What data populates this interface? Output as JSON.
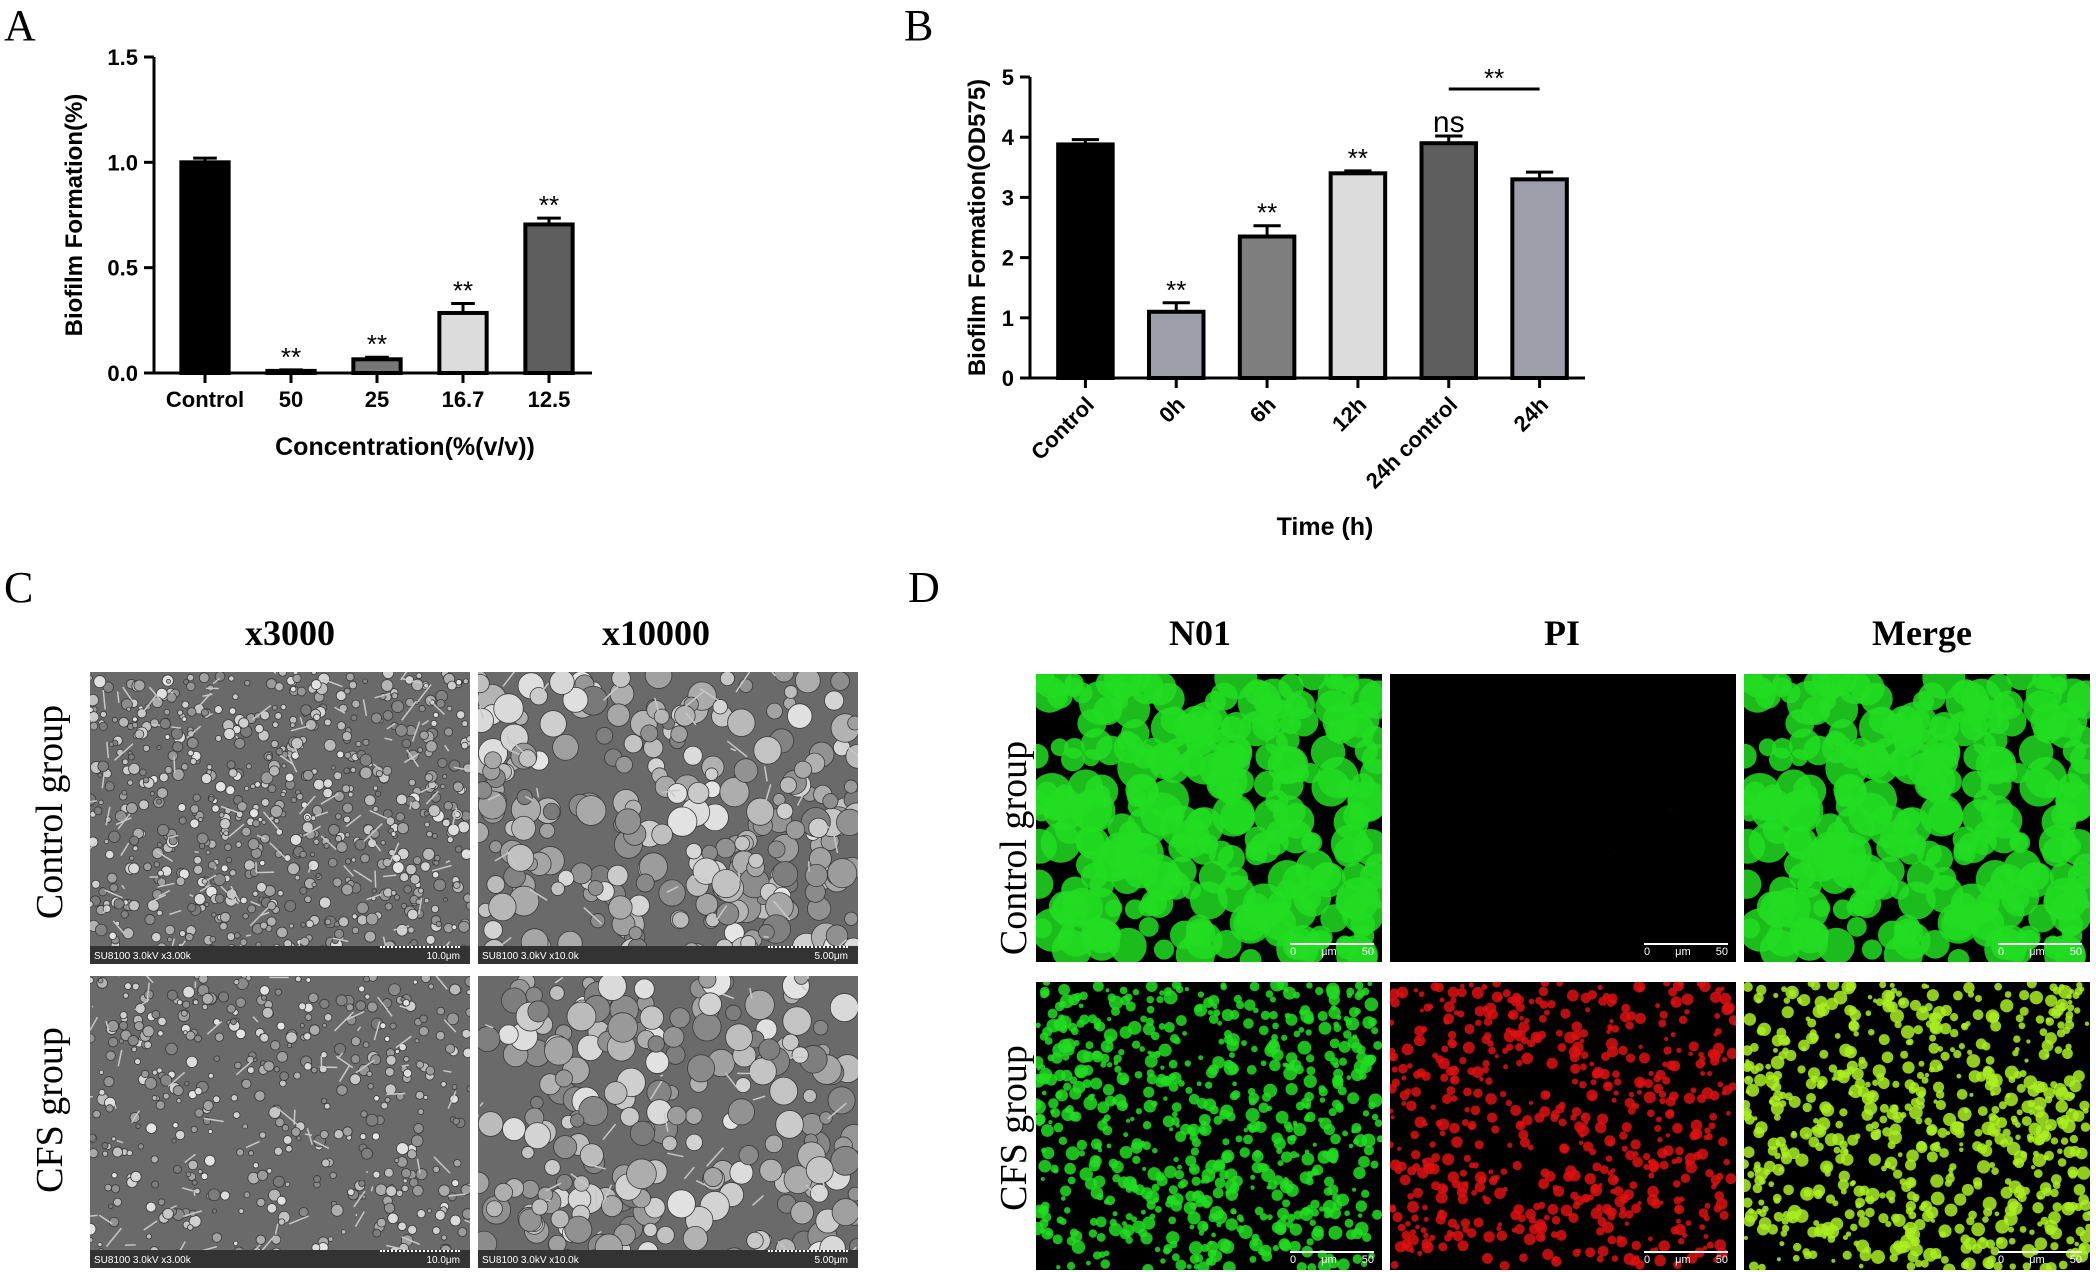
{
  "panels": {
    "A": {
      "letter": "A"
    },
    "B": {
      "letter": "B"
    },
    "C": {
      "letter": "C",
      "columns": [
        "x3000",
        "x10000"
      ],
      "rows": [
        "Control group",
        "CFS group"
      ],
      "sem_info": [
        "SU8100 3.0kV x3.00k",
        "SU8100 3.0kV x10.0k",
        "SU8100 3.0kV x3.00k",
        "SU8100 3.0kV x10.0k"
      ],
      "sem_scale": [
        "10.0μm",
        "5.00μm",
        "10.0μm",
        "5.00μm"
      ]
    },
    "D": {
      "letter": "D",
      "columns": [
        "N01",
        "PI",
        "Merge"
      ],
      "rows": [
        "Control group",
        "CFS group"
      ],
      "scale_labels": {
        "zero": "0",
        "unit": "μm",
        "max": "50"
      }
    }
  },
  "colors": {
    "green": "#22dd22",
    "red": "#dd1111",
    "yellow": "#aaee22",
    "sem_bg": "#6a6a6a"
  },
  "chart_data": [
    {
      "type": "bar",
      "categories": [
        "Control",
        "50",
        "25",
        "16.7",
        "12.5"
      ],
      "values": [
        1.0,
        0.01,
        0.065,
        0.285,
        0.705
      ],
      "errors": [
        0.02,
        0.005,
        0.01,
        0.045,
        0.03
      ],
      "significance": [
        "",
        "**",
        "**",
        "**",
        "**"
      ],
      "bar_colors": [
        "#000000",
        "#5a5a5a",
        "#777777",
        "#dcdcdc",
        "#5e5e5e"
      ],
      "xlabel": "Concentration(%(v/v))",
      "ylabel": "Biofilm Formation(%)",
      "ylim": [
        0,
        1.5
      ],
      "yticks": [
        "0.0",
        "0.5",
        "1.0",
        "1.5"
      ]
    },
    {
      "type": "bar",
      "categories": [
        "Control",
        "0h",
        "6h",
        "12h",
        "24h control",
        "24h"
      ],
      "values": [
        3.88,
        1.1,
        2.35,
        3.4,
        3.9,
        3.3
      ],
      "errors": [
        0.08,
        0.15,
        0.18,
        0.04,
        0.12,
        0.12
      ],
      "significance": [
        "",
        "**",
        "**",
        "**",
        "ns",
        ""
      ],
      "bracket": {
        "from": "24h control",
        "to": "24h",
        "label": "**"
      },
      "bar_colors": [
        "#000000",
        "#9e9eaa",
        "#7e7e7e",
        "#dcdcdc",
        "#5e5e5e",
        "#9e9eaa"
      ],
      "xlabel": "Time (h)",
      "ylabel": "Biofilm Formation(OD575)",
      "ylim": [
        0,
        5
      ],
      "yticks": [
        "0",
        "1",
        "2",
        "3",
        "4",
        "5"
      ]
    }
  ]
}
